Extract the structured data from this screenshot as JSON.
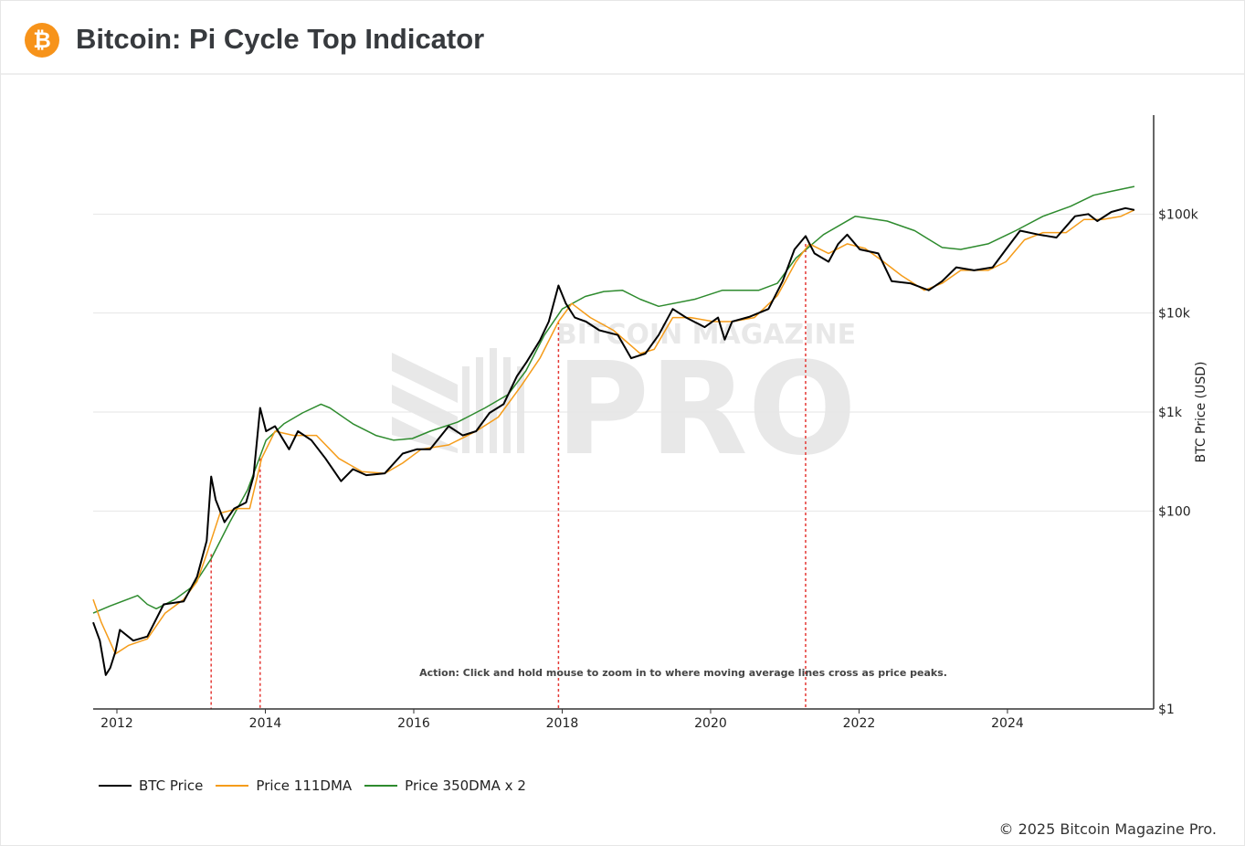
{
  "header": {
    "title": "Bitcoin: Pi Cycle Top Indicator",
    "logo_icon": "bitcoin-icon",
    "logo_color": "#f7931a"
  },
  "watermark": {
    "text": "BITCOIN MAGAZINE PRO",
    "big": "PRO"
  },
  "footer": {
    "copyright": "© 2025 Bitcoin Magazine Pro."
  },
  "chart_data": {
    "type": "line",
    "title": "",
    "xlabel": "",
    "ylabel": "BTC Price (USD)",
    "y_scale": "log",
    "xlim": [
      2011.68,
      2025.97
    ],
    "ylim": [
      1,
      1000000
    ],
    "x_ticks": [
      2012,
      2014,
      2016,
      2018,
      2020,
      2022,
      2024
    ],
    "x_tick_labels": [
      "2012",
      "2014",
      "2016",
      "2018",
      "2020",
      "2022",
      "2024"
    ],
    "y_ticks": [
      1,
      100,
      1000,
      10000,
      100000
    ],
    "y_tick_labels": [
      "$1",
      "$100",
      "$1k",
      "$10k",
      "$100k"
    ],
    "grid": "horizontal",
    "legend_position": "bottom-left",
    "annotation": "Action: Click and hold mouse to zoom in to where moving average lines cross as price peaks.",
    "cross_markers": [
      2013.27,
      2013.93,
      2017.95,
      2021.28
    ],
    "cross_marker_color": "#e53935",
    "series": [
      {
        "name": "BTC Price",
        "color": "#000000",
        "points": [
          [
            2011.68,
            7.5
          ],
          [
            2011.77,
            4.9
          ],
          [
            2011.85,
            2.2
          ],
          [
            2011.91,
            2.6
          ],
          [
            2011.98,
            3.8
          ],
          [
            2012.04,
            6.3
          ],
          [
            2012.22,
            4.9
          ],
          [
            2012.41,
            5.4
          ],
          [
            2012.63,
            11.4
          ],
          [
            2012.9,
            12.2
          ],
          [
            2013.08,
            21.6
          ],
          [
            2013.21,
            50
          ],
          [
            2013.27,
            223
          ],
          [
            2013.33,
            130
          ],
          [
            2013.45,
            77
          ],
          [
            2013.58,
            106
          ],
          [
            2013.74,
            122
          ],
          [
            2013.84,
            223
          ],
          [
            2013.93,
            1100
          ],
          [
            2014.01,
            640
          ],
          [
            2014.13,
            720
          ],
          [
            2014.32,
            420
          ],
          [
            2014.44,
            640
          ],
          [
            2014.62,
            520
          ],
          [
            2014.81,
            340
          ],
          [
            2015.02,
            200
          ],
          [
            2015.18,
            265
          ],
          [
            2015.36,
            230
          ],
          [
            2015.61,
            240
          ],
          [
            2015.85,
            380
          ],
          [
            2016.04,
            420
          ],
          [
            2016.22,
            420
          ],
          [
            2016.47,
            720
          ],
          [
            2016.66,
            580
          ],
          [
            2016.84,
            640
          ],
          [
            2017.02,
            980
          ],
          [
            2017.21,
            1200
          ],
          [
            2017.39,
            2300
          ],
          [
            2017.52,
            3200
          ],
          [
            2017.7,
            5300
          ],
          [
            2017.82,
            8200
          ],
          [
            2017.95,
            19000
          ],
          [
            2018.05,
            12500
          ],
          [
            2018.17,
            9000
          ],
          [
            2018.32,
            8200
          ],
          [
            2018.5,
            6700
          ],
          [
            2018.75,
            6000
          ],
          [
            2018.93,
            3500
          ],
          [
            2019.12,
            3900
          ],
          [
            2019.3,
            6000
          ],
          [
            2019.49,
            11000
          ],
          [
            2019.67,
            9000
          ],
          [
            2019.92,
            7200
          ],
          [
            2020.1,
            9000
          ],
          [
            2020.19,
            5400
          ],
          [
            2020.29,
            8200
          ],
          [
            2020.53,
            9200
          ],
          [
            2020.78,
            11000
          ],
          [
            2020.97,
            21000
          ],
          [
            2021.13,
            44000
          ],
          [
            2021.28,
            60000
          ],
          [
            2021.4,
            40000
          ],
          [
            2021.59,
            33000
          ],
          [
            2021.72,
            50000
          ],
          [
            2021.84,
            62000
          ],
          [
            2022.01,
            44000
          ],
          [
            2022.26,
            40000
          ],
          [
            2022.44,
            21000
          ],
          [
            2022.69,
            20000
          ],
          [
            2022.94,
            17000
          ],
          [
            2023.12,
            21000
          ],
          [
            2023.31,
            29000
          ],
          [
            2023.55,
            27000
          ],
          [
            2023.8,
            29000
          ],
          [
            2023.98,
            44000
          ],
          [
            2024.17,
            68000
          ],
          [
            2024.42,
            62000
          ],
          [
            2024.66,
            58000
          ],
          [
            2024.91,
            95000
          ],
          [
            2025.09,
            100000
          ],
          [
            2025.21,
            85000
          ],
          [
            2025.4,
            105000
          ],
          [
            2025.59,
            115000
          ],
          [
            2025.71,
            110000
          ]
        ]
      },
      {
        "name": "Price 111DMA",
        "color": "#f59c1a",
        "points": [
          [
            2011.68,
            12.8
          ],
          [
            2011.79,
            7.5
          ],
          [
            2011.98,
            3.6
          ],
          [
            2012.16,
            4.4
          ],
          [
            2012.41,
            5.1
          ],
          [
            2012.65,
            9.3
          ],
          [
            2012.9,
            12.8
          ],
          [
            2013.08,
            19.4
          ],
          [
            2013.21,
            36.7
          ],
          [
            2013.39,
            95
          ],
          [
            2013.64,
            106
          ],
          [
            2013.79,
            106
          ],
          [
            2013.95,
            340
          ],
          [
            2014.13,
            640
          ],
          [
            2014.38,
            580
          ],
          [
            2014.69,
            580
          ],
          [
            2014.99,
            340
          ],
          [
            2015.3,
            250
          ],
          [
            2015.61,
            240
          ],
          [
            2015.85,
            305
          ],
          [
            2016.1,
            420
          ],
          [
            2016.47,
            465
          ],
          [
            2016.84,
            640
          ],
          [
            2017.14,
            890
          ],
          [
            2017.45,
            1850
          ],
          [
            2017.7,
            3500
          ],
          [
            2017.95,
            8200
          ],
          [
            2018.13,
            12500
          ],
          [
            2018.38,
            9000
          ],
          [
            2018.69,
            6700
          ],
          [
            2019.05,
            3900
          ],
          [
            2019.24,
            4300
          ],
          [
            2019.49,
            9000
          ],
          [
            2019.73,
            9000
          ],
          [
            2020.04,
            8200
          ],
          [
            2020.29,
            8200
          ],
          [
            2020.59,
            9000
          ],
          [
            2020.9,
            15000
          ],
          [
            2021.15,
            33000
          ],
          [
            2021.33,
            50000
          ],
          [
            2021.59,
            40000
          ],
          [
            2021.84,
            50000
          ],
          [
            2022.08,
            45000
          ],
          [
            2022.33,
            33000
          ],
          [
            2022.57,
            24000
          ],
          [
            2022.88,
            17000
          ],
          [
            2023.12,
            20000
          ],
          [
            2023.37,
            27000
          ],
          [
            2023.74,
            27000
          ],
          [
            2023.98,
            33000
          ],
          [
            2024.23,
            55000
          ],
          [
            2024.48,
            65000
          ],
          [
            2024.79,
            65000
          ],
          [
            2025.03,
            88000
          ],
          [
            2025.28,
            88000
          ],
          [
            2025.53,
            95000
          ],
          [
            2025.71,
            110000
          ]
        ]
      },
      {
        "name": "Price 350DMA x 2",
        "color": "#2e8b2e",
        "points": [
          [
            2011.68,
            9.3
          ],
          [
            2011.91,
            11
          ],
          [
            2012.28,
            14
          ],
          [
            2012.41,
            11.4
          ],
          [
            2012.53,
            10.3
          ],
          [
            2012.78,
            12.8
          ],
          [
            2013.03,
            17.5
          ],
          [
            2013.27,
            33
          ],
          [
            2013.52,
            77
          ],
          [
            2013.76,
            163
          ],
          [
            2014.01,
            520
          ],
          [
            2014.25,
            760
          ],
          [
            2014.5,
            980
          ],
          [
            2014.75,
            1200
          ],
          [
            2014.87,
            1100
          ],
          [
            2015.18,
            760
          ],
          [
            2015.49,
            580
          ],
          [
            2015.73,
            520
          ],
          [
            2015.98,
            540
          ],
          [
            2016.22,
            640
          ],
          [
            2016.59,
            790
          ],
          [
            2016.96,
            1100
          ],
          [
            2017.27,
            1500
          ],
          [
            2017.51,
            2600
          ],
          [
            2017.76,
            6000
          ],
          [
            2018.0,
            11000
          ],
          [
            2018.31,
            14700
          ],
          [
            2018.56,
            16500
          ],
          [
            2018.81,
            17000
          ],
          [
            2019.05,
            13800
          ],
          [
            2019.3,
            11700
          ],
          [
            2019.79,
            13800
          ],
          [
            2020.16,
            17000
          ],
          [
            2020.65,
            17000
          ],
          [
            2020.9,
            20000
          ],
          [
            2021.15,
            36000
          ],
          [
            2021.52,
            62000
          ],
          [
            2021.95,
            95000
          ],
          [
            2022.38,
            85000
          ],
          [
            2022.75,
            68000
          ],
          [
            2023.12,
            46000
          ],
          [
            2023.37,
            44000
          ],
          [
            2023.74,
            50000
          ],
          [
            2024.11,
            68000
          ],
          [
            2024.48,
            95000
          ],
          [
            2024.85,
            120000
          ],
          [
            2025.16,
            155000
          ],
          [
            2025.4,
            170000
          ],
          [
            2025.71,
            190000
          ]
        ]
      }
    ]
  }
}
